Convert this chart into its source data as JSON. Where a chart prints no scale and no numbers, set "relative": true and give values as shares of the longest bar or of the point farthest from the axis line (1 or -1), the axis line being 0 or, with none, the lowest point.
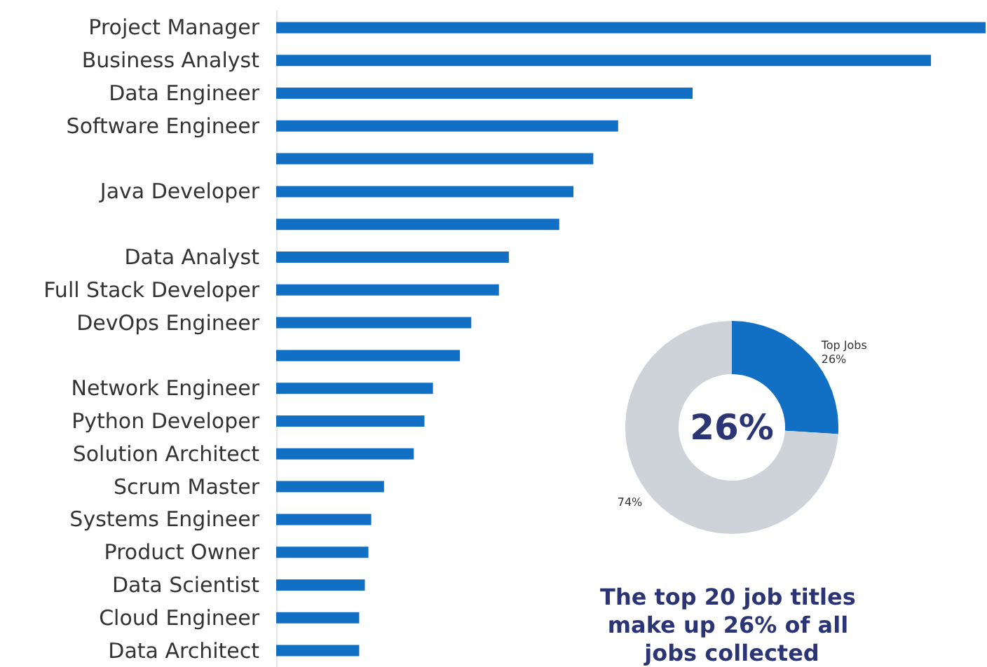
{
  "chart_data": [
    {
      "type": "bar",
      "orientation": "horizontal",
      "relative": true,
      "color": "#1170c4",
      "categories": [
        "Project Manager",
        "Business Analyst",
        "Data Engineer",
        "Software Engineer",
        null,
        "Java Developer",
        null,
        "Data Analyst",
        "Full Stack Developer",
        "DevOps Engineer",
        null,
        "Network Engineer",
        "Python Developer",
        "Solution Architect",
        "Scrum Master",
        "Systems Engineer",
        "Product Owner",
        "Data Scientist",
        "Cloud Engineer",
        "Data Architect"
      ],
      "values": [
        1,
        0.923,
        0.587,
        0.482,
        0.447,
        0.419,
        0.399,
        0.328,
        0.314,
        0.275,
        0.259,
        0.221,
        0.209,
        0.194,
        0.152,
        0.134,
        0.13,
        0.125,
        0.117,
        0.117
      ]
    },
    {
      "type": "donut",
      "categories": [
        "Top Jobs",
        null
      ],
      "values": [
        26,
        74
      ],
      "colors": [
        "#1170c4",
        "#cdd3d8"
      ],
      "value_labels": [
        "26%",
        "74%"
      ],
      "annotations": [
        "26%",
        "The top 20 job titles make up 26% of all jobs collected"
      ]
    }
  ]
}
